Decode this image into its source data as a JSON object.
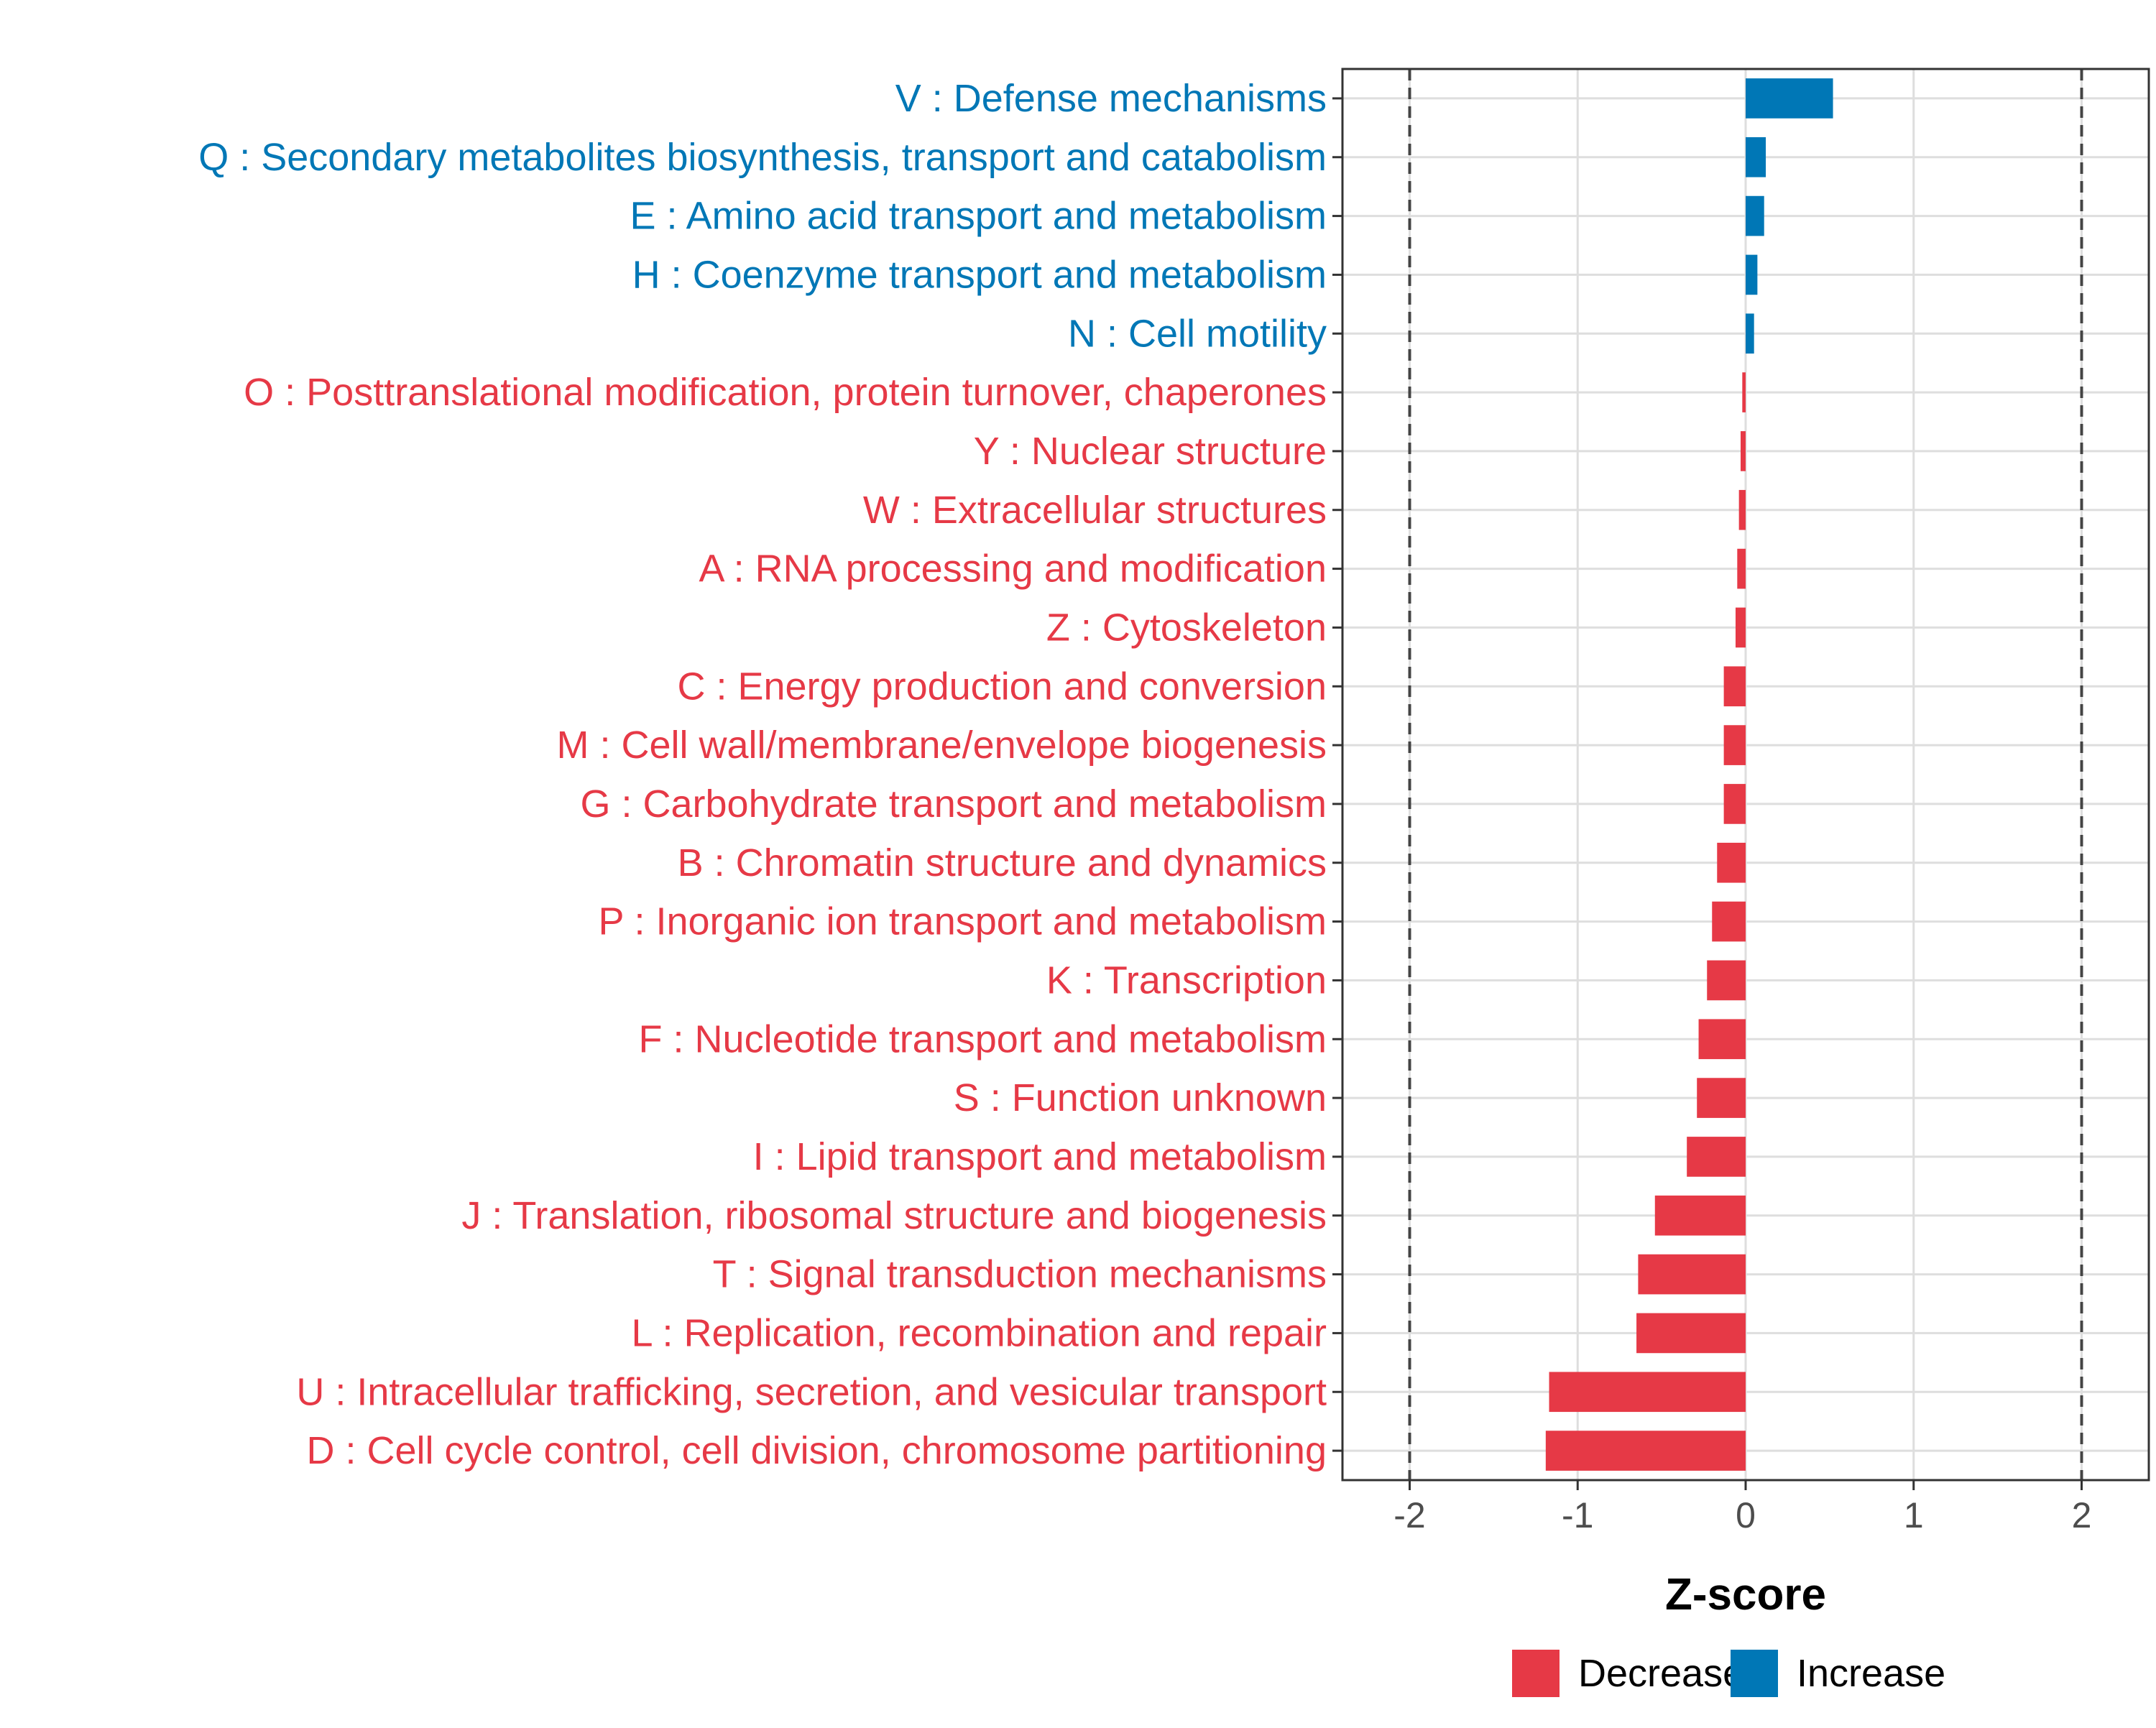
{
  "chart_data": {
    "type": "bar",
    "orientation": "horizontal",
    "xlabel": "Z-score",
    "xlim": [
      -2.4,
      2.4
    ],
    "xticks": [
      -2,
      -1,
      0,
      1,
      2
    ],
    "xtick_labels": [
      "-2",
      "-1",
      "0",
      "1",
      "2"
    ],
    "reference_lines": [
      -2,
      2
    ],
    "grid": true,
    "colors": {
      "Decrease": "#E63946",
      "Increase": "#0077B6"
    },
    "categories": [
      {
        "label": "V : Defense mechanisms",
        "value": 0.52,
        "direction": "Increase"
      },
      {
        "label": "Q : Secondary metabolites biosynthesis, transport and catabolism",
        "value": 0.12,
        "direction": "Increase"
      },
      {
        "label": "E : Amino acid transport and metabolism",
        "value": 0.11,
        "direction": "Increase"
      },
      {
        "label": "H : Coenzyme transport and metabolism",
        "value": 0.07,
        "direction": "Increase"
      },
      {
        "label": "N : Cell motility",
        "value": 0.05,
        "direction": "Increase"
      },
      {
        "label": "O : Posttranslational modification, protein turnover, chaperones",
        "value": -0.02,
        "direction": "Decrease"
      },
      {
        "label": "Y : Nuclear structure",
        "value": -0.03,
        "direction": "Decrease"
      },
      {
        "label": "W : Extracellular structures",
        "value": -0.04,
        "direction": "Decrease"
      },
      {
        "label": "A : RNA processing and modification",
        "value": -0.05,
        "direction": "Decrease"
      },
      {
        "label": "Z : Cytoskeleton",
        "value": -0.06,
        "direction": "Decrease"
      },
      {
        "label": "C : Energy production and conversion",
        "value": -0.13,
        "direction": "Decrease"
      },
      {
        "label": "M : Cell wall/membrane/envelope biogenesis",
        "value": -0.13,
        "direction": "Decrease"
      },
      {
        "label": "G : Carbohydrate transport and metabolism",
        "value": -0.13,
        "direction": "Decrease"
      },
      {
        "label": "B : Chromatin structure and dynamics",
        "value": -0.17,
        "direction": "Decrease"
      },
      {
        "label": "P : Inorganic ion transport and metabolism",
        "value": -0.2,
        "direction": "Decrease"
      },
      {
        "label": "K : Transcription",
        "value": -0.23,
        "direction": "Decrease"
      },
      {
        "label": "F : Nucleotide transport and metabolism",
        "value": -0.28,
        "direction": "Decrease"
      },
      {
        "label": "S : Function unknown",
        "value": -0.29,
        "direction": "Decrease"
      },
      {
        "label": "I : Lipid transport and metabolism",
        "value": -0.35,
        "direction": "Decrease"
      },
      {
        "label": "J : Translation, ribosomal structure and biogenesis",
        "value": -0.54,
        "direction": "Decrease"
      },
      {
        "label": "T : Signal transduction mechanisms",
        "value": -0.64,
        "direction": "Decrease"
      },
      {
        "label": "L : Replication, recombination and repair",
        "value": -0.65,
        "direction": "Decrease"
      },
      {
        "label": "U : Intracellular trafficking, secretion, and vesicular transport",
        "value": -1.17,
        "direction": "Decrease"
      },
      {
        "label": "D : Cell cycle control, cell division, chromosome partitioning",
        "value": -1.19,
        "direction": "Decrease"
      }
    ],
    "legend": [
      {
        "label": "Decrease",
        "color": "#E63946"
      },
      {
        "label": "Increase",
        "color": "#0077B6"
      }
    ],
    "legend_position": "bottom"
  }
}
